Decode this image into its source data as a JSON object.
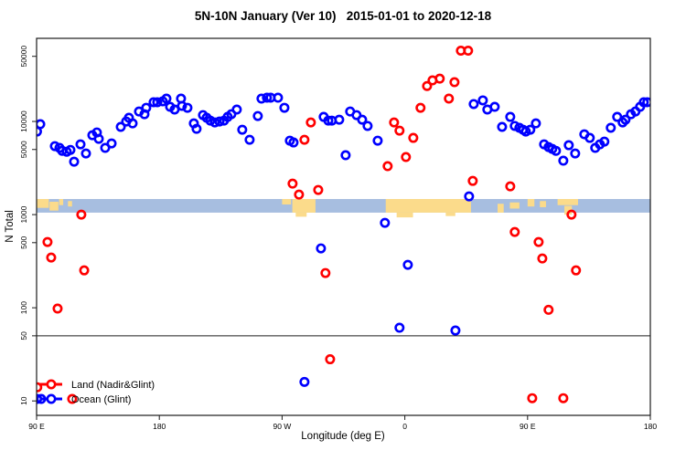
{
  "title": "5N-10N January (Ver 10)   2015-01-01 to 2020-12-18",
  "legend": {
    "items": [
      {
        "label": "Land (Nadir&Glint)",
        "color": "#ff0000"
      },
      {
        "label": "Ocean (Glint)",
        "color": "#0000ff"
      }
    ]
  },
  "chart_data": {
    "type": "scatter",
    "title": "5N-10N January (Ver 10)   2015-01-01 to 2020-12-18",
    "xlabel": "Longitude (deg E)",
    "ylabel": "N Total",
    "x_axis_note": "longitude axis runs eastward 450 deg starting at 90E: 90E -> 180 -> 90W -> 0 -> 90E -> 180; values stored on extended 90..540 scale",
    "xlim": [
      90,
      540
    ],
    "ylim": [
      7,
      78000
    ],
    "y_scale": "log",
    "grid": false,
    "legend_position": "bottom-left",
    "x_ticks": [
      {
        "value": 90,
        "label": "90 E"
      },
      {
        "value": 180,
        "label": "180"
      },
      {
        "value": 270,
        "label": "90 W"
      },
      {
        "value": 360,
        "label": "0"
      },
      {
        "value": 450,
        "label": "90 E"
      },
      {
        "value": 540,
        "label": "180"
      }
    ],
    "y_ticks": [
      {
        "value": 10,
        "label": "10"
      },
      {
        "value": 50,
        "label": "50"
      },
      {
        "value": 100,
        "label": "100"
      },
      {
        "value": 500,
        "label": "500"
      },
      {
        "value": 1000,
        "label": "1000"
      },
      {
        "value": 5000,
        "label": "5000"
      },
      {
        "value": 10000,
        "label": "10000"
      },
      {
        "value": 50000,
        "label": "50000"
      }
    ],
    "reference_line_y": 50,
    "map_strip": {
      "description": "land/ocean strip drawn across plot near N=1000-1500",
      "n_min": 1050,
      "n_max": 1470,
      "ocean_color": "#a7bee0",
      "land_color": "#fbdb8b",
      "land_patches": [
        {
          "from": 90,
          "to": 99,
          "y0": 0,
          "y1": 0.65
        },
        {
          "from": 99.5,
          "to": 106,
          "y0": 0.2,
          "y1": 0.85
        },
        {
          "from": 106.5,
          "to": 109.5,
          "y0": 0,
          "y1": 0.45
        },
        {
          "from": 113,
          "to": 116,
          "y0": 0.15,
          "y1": 0.55
        },
        {
          "from": 270,
          "to": 276.5,
          "y0": 0,
          "y1": 0.4
        },
        {
          "from": 277.5,
          "to": 294.5,
          "y0": 0,
          "y1": 1
        },
        {
          "from": 280,
          "to": 288,
          "y0": 1,
          "y1": 1.3
        },
        {
          "from": 346,
          "to": 408.5,
          "y0": 0,
          "y1": 1
        },
        {
          "from": 354,
          "to": 366,
          "y0": 1,
          "y1": 1.35
        },
        {
          "from": 390,
          "to": 397,
          "y0": 1,
          "y1": 1.25
        },
        {
          "from": 428,
          "to": 432.5,
          "y0": 0.35,
          "y1": 1
        },
        {
          "from": 437,
          "to": 444,
          "y0": 0.25,
          "y1": 0.7
        },
        {
          "from": 450,
          "to": 455,
          "y0": 0,
          "y1": 0.55
        },
        {
          "from": 459,
          "to": 463.5,
          "y0": 0.15,
          "y1": 0.6
        },
        {
          "from": 472,
          "to": 487,
          "y0": 0,
          "y1": 0.45
        },
        {
          "from": 477,
          "to": 482.5,
          "y0": 0.5,
          "y1": 1.15
        }
      ]
    },
    "series": [
      {
        "name": "Land (Nadir&Glint)",
        "color": "#ff0000",
        "points": [
          [
            98.0,
            508
          ],
          [
            100.7,
            346
          ],
          [
            105.4,
            98
          ],
          [
            122.8,
            1000
          ],
          [
            124.9,
            252
          ],
          [
            277.7,
            2150
          ],
          [
            282.4,
            1640
          ],
          [
            286.4,
            6360
          ],
          [
            291.1,
            9760
          ],
          [
            296.5,
            1840
          ],
          [
            301.8,
            236
          ],
          [
            305.2,
            28
          ],
          [
            347.4,
            3310
          ],
          [
            352.1,
            9760
          ],
          [
            356.1,
            7970
          ],
          [
            360.8,
            4150
          ],
          [
            366.2,
            6660
          ],
          [
            371.5,
            14000
          ],
          [
            376.3,
            24000
          ],
          [
            380.3,
            27600
          ],
          [
            385.6,
            28800
          ],
          [
            392.3,
            17600
          ],
          [
            396.4,
            26400
          ],
          [
            401.1,
            57500
          ],
          [
            406.4,
            57500
          ],
          [
            409.8,
            2300
          ],
          [
            437.3,
            2010
          ],
          [
            440.6,
            651
          ],
          [
            453.4,
            10.7
          ],
          [
            458.1,
            508
          ],
          [
            460.8,
            338
          ],
          [
            465.4,
            95
          ],
          [
            476.2,
            10.7
          ],
          [
            482.2,
            1000
          ],
          [
            485.5,
            252
          ],
          [
            90.5,
            14
          ],
          [
            116.1,
            10.5
          ]
        ]
      },
      {
        "name": "Ocean (Glint)",
        "color": "#0000ff",
        "points": [
          [
            90.3,
            7800
          ],
          [
            92.7,
            9350
          ],
          [
            103.4,
            5430
          ],
          [
            106.8,
            5200
          ],
          [
            108.8,
            4840
          ],
          [
            112.1,
            4730
          ],
          [
            114.8,
            4950
          ],
          [
            117.5,
            3700
          ],
          [
            122.2,
            5680
          ],
          [
            126.2,
            4530
          ],
          [
            130.9,
            7110
          ],
          [
            134.2,
            7620
          ],
          [
            135.6,
            6500
          ],
          [
            140.3,
            5200
          ],
          [
            145.0,
            5810
          ],
          [
            151.7,
            8740
          ],
          [
            155.7,
            9990
          ],
          [
            157.7,
            10950
          ],
          [
            160.4,
            9530
          ],
          [
            165.1,
            12780
          ],
          [
            169.1,
            11950
          ],
          [
            170.4,
            14020
          ],
          [
            175.8,
            16090
          ],
          [
            178.5,
            16090
          ],
          [
            182.5,
            16460
          ],
          [
            185.2,
            17580
          ],
          [
            187.9,
            14350
          ],
          [
            191.2,
            13420
          ],
          [
            195.9,
            17580
          ],
          [
            196.6,
            14680
          ],
          [
            200.6,
            14020
          ],
          [
            205.3,
            9530
          ],
          [
            207.3,
            8330
          ],
          [
            212.0,
            11700
          ],
          [
            214.7,
            10950
          ],
          [
            217.4,
            10210
          ],
          [
            220.7,
            9760
          ],
          [
            224.1,
            9980
          ],
          [
            227.4,
            10210
          ],
          [
            230.1,
            11190
          ],
          [
            232.8,
            11950
          ],
          [
            236.8,
            13420
          ],
          [
            240.8,
            8150
          ],
          [
            246.2,
            6360
          ],
          [
            252.2,
            11440
          ],
          [
            254.9,
            17580
          ],
          [
            258.9,
            17980
          ],
          [
            261.6,
            17980
          ],
          [
            267.0,
            17980
          ],
          [
            271.7,
            14020
          ],
          [
            275.7,
            6220
          ],
          [
            278.4,
            5950
          ],
          [
            286.4,
            16
          ],
          [
            298.5,
            434
          ],
          [
            300.5,
            11190
          ],
          [
            303.9,
            10210
          ],
          [
            306.5,
            10210
          ],
          [
            311.9,
            10440
          ],
          [
            316.6,
            4340
          ],
          [
            319.9,
            12780
          ],
          [
            324.6,
            11700
          ],
          [
            328.7,
            10440
          ],
          [
            332.7,
            8950
          ],
          [
            340.1,
            6220
          ],
          [
            345.4,
            816
          ],
          [
            356.1,
            61
          ],
          [
            362.2,
            289
          ],
          [
            397.1,
            57
          ],
          [
            407.1,
            1570
          ],
          [
            410.5,
            15380
          ],
          [
            417.2,
            16840
          ],
          [
            420.5,
            13420
          ],
          [
            425.9,
            14350
          ],
          [
            431.3,
            8740
          ],
          [
            437.3,
            11190
          ],
          [
            440.6,
            8950
          ],
          [
            444.0,
            8550
          ],
          [
            446.7,
            8150
          ],
          [
            448.7,
            7790
          ],
          [
            452.0,
            8150
          ],
          [
            456.1,
            9530
          ],
          [
            462.1,
            5680
          ],
          [
            465.4,
            5310
          ],
          [
            468.1,
            5070
          ],
          [
            470.8,
            4840
          ],
          [
            476.2,
            3790
          ],
          [
            480.2,
            5560
          ],
          [
            484.9,
            4530
          ],
          [
            491.6,
            7280
          ],
          [
            495.6,
            6660
          ],
          [
            499.6,
            5200
          ],
          [
            503.0,
            5680
          ],
          [
            506.3,
            6080
          ],
          [
            511.0,
            8550
          ],
          [
            515.7,
            11190
          ],
          [
            519.7,
            9760
          ],
          [
            521.8,
            10440
          ],
          [
            525.8,
            11950
          ],
          [
            529.1,
            12780
          ],
          [
            532.5,
            14350
          ],
          [
            535.2,
            16090
          ],
          [
            537.8,
            16090
          ],
          [
            90.4,
            10.5
          ],
          [
            93.4,
            10.5
          ]
        ]
      }
    ]
  }
}
